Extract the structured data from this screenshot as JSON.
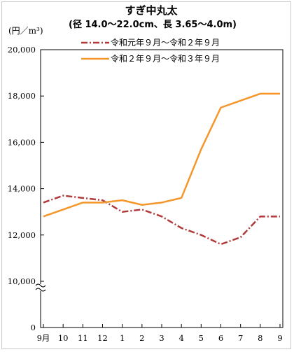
{
  "chart_data": {
    "type": "line",
    "title": "すぎ中丸太",
    "subtitle": "(径 14.0～22.0cm、長 3.65～4.0m)",
    "ylabel": "(円／m³)",
    "ylim": [
      10000,
      20000
    ],
    "y_break": true,
    "y_ticks": [
      "20,000",
      "18,000",
      "16,000",
      "14,000",
      "12,000",
      "10,000",
      "0"
    ],
    "y_tick_values": [
      20000,
      18000,
      16000,
      14000,
      12000,
      10000
    ],
    "categories": [
      "9月",
      "10",
      "11",
      "12",
      "1",
      "2",
      "3",
      "4",
      "5",
      "6",
      "7",
      "8",
      "9"
    ],
    "legend_position": "top-right",
    "series": [
      {
        "name": "令和元年９月～令和２年９月",
        "color": "#b03a3a",
        "style": "dash-dot",
        "values": [
          13400,
          13700,
          13600,
          13500,
          13000,
          13100,
          12800,
          12300,
          12000,
          11600,
          11900,
          12800,
          12800
        ]
      },
      {
        "name": "令和２年９月～令和３年９月",
        "color": "#f5962a",
        "style": "solid",
        "values": [
          12800,
          13100,
          13400,
          13400,
          13500,
          13300,
          13400,
          13600,
          15700,
          17500,
          17800,
          18100,
          18100
        ]
      }
    ]
  }
}
